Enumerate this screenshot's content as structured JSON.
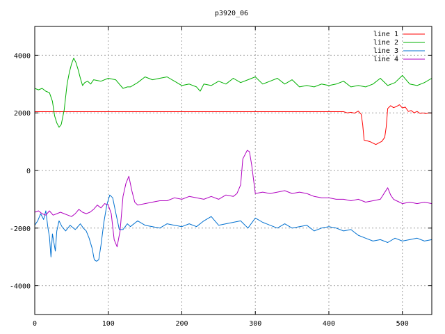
{
  "chart_data": {
    "type": "line",
    "title": "p3920_06",
    "xlabel": "",
    "ylabel": "",
    "xlim": [
      0,
      540
    ],
    "ylim": [
      -5000,
      5000
    ],
    "xticks": [
      0,
      100,
      200,
      300,
      400,
      500
    ],
    "yticks": [
      -4000,
      -2000,
      0,
      2000,
      4000
    ],
    "grid": true,
    "legend_position": "top-right",
    "series": [
      {
        "name": "line 1",
        "color": "#ff0000",
        "x": [
          0,
          420,
          425,
          430,
          435,
          440,
          444,
          446,
          448,
          452,
          456,
          460,
          464,
          468,
          472,
          476,
          478,
          480,
          484,
          488,
          492,
          496,
          500,
          504,
          508,
          512,
          516,
          520,
          524,
          528,
          532,
          536,
          540
        ],
        "y": [
          2040,
          2040,
          2000,
          2020,
          1990,
          2060,
          1950,
          1600,
          1050,
          1030,
          1000,
          950,
          900,
          960,
          1010,
          1150,
          1500,
          2150,
          2250,
          2180,
          2220,
          2280,
          2170,
          2200,
          2050,
          2080,
          2000,
          2050,
          1980,
          2000,
          1970,
          2000,
          1990
        ]
      },
      {
        "name": "line 2",
        "color": "#00b000",
        "x": [
          0,
          5,
          10,
          15,
          20,
          24,
          27,
          30,
          33,
          36,
          40,
          44,
          47,
          50,
          53,
          56,
          59,
          62,
          65,
          68,
          72,
          76,
          80,
          90,
          100,
          110,
          120,
          126,
          130,
          140,
          150,
          160,
          170,
          180,
          190,
          200,
          210,
          220,
          225,
          230,
          240,
          250,
          260,
          270,
          280,
          290,
          300,
          310,
          320,
          330,
          340,
          350,
          360,
          370,
          380,
          390,
          400,
          410,
          420,
          430,
          440,
          450,
          460,
          470,
          480,
          490,
          500,
          510,
          520,
          530,
          540
        ],
        "y": [
          2850,
          2800,
          2850,
          2750,
          2700,
          2400,
          1900,
          1650,
          1500,
          1600,
          2100,
          3000,
          3400,
          3700,
          3900,
          3750,
          3500,
          3200,
          2950,
          3050,
          3100,
          3000,
          3150,
          3100,
          3200,
          3150,
          2850,
          2900,
          2900,
          3050,
          3250,
          3150,
          3200,
          3250,
          3100,
          2950,
          3000,
          2900,
          2750,
          3000,
          2950,
          3100,
          3000,
          3200,
          3050,
          3150,
          3250,
          3000,
          3100,
          3200,
          3000,
          3150,
          2900,
          2950,
          2900,
          3000,
          2950,
          3000,
          3100,
          2900,
          2950,
          2900,
          3000,
          3200,
          2950,
          3050,
          3300,
          3000,
          2950,
          3050,
          3200
        ]
      },
      {
        "name": "line 3",
        "color": "#0070d0",
        "x": [
          0,
          4,
          8,
          12,
          15,
          18,
          20,
          22,
          24,
          26,
          28,
          30,
          33,
          37,
          42,
          48,
          55,
          62,
          66,
          70,
          74,
          78,
          81,
          84,
          87,
          90,
          94,
          98,
          102,
          106,
          110,
          115,
          120,
          126,
          130,
          140,
          150,
          160,
          170,
          180,
          190,
          200,
          210,
          220,
          230,
          240,
          250,
          260,
          270,
          280,
          290,
          300,
          310,
          320,
          330,
          340,
          350,
          360,
          370,
          380,
          390,
          400,
          410,
          420,
          430,
          440,
          450,
          460,
          470,
          480,
          490,
          500,
          510,
          520,
          530,
          540
        ],
        "y": [
          -1900,
          -1750,
          -1500,
          -1700,
          -1400,
          -2000,
          -2300,
          -3000,
          -2200,
          -2500,
          -2800,
          -2100,
          -1750,
          -1950,
          -2100,
          -1900,
          -2050,
          -1850,
          -2000,
          -2100,
          -2350,
          -2700,
          -3100,
          -3150,
          -3100,
          -2600,
          -1800,
          -1200,
          -850,
          -950,
          -1450,
          -2050,
          -2050,
          -1850,
          -1950,
          -1750,
          -1900,
          -1950,
          -2000,
          -1850,
          -1900,
          -1950,
          -1850,
          -1950,
          -1750,
          -1600,
          -1900,
          -1850,
          -1800,
          -1750,
          -2000,
          -1650,
          -1800,
          -1900,
          -2000,
          -1850,
          -2000,
          -1950,
          -1900,
          -2100,
          -2000,
          -1950,
          -2000,
          -2100,
          -2050,
          -2250,
          -2350,
          -2450,
          -2400,
          -2500,
          -2350,
          -2450,
          -2400,
          -2350,
          -2450,
          -2400
        ]
      },
      {
        "name": "line 4",
        "color": "#b000c0",
        "x": [
          0,
          5,
          10,
          15,
          20,
          25,
          30,
          35,
          40,
          45,
          50,
          55,
          60,
          65,
          70,
          75,
          80,
          85,
          90,
          95,
          100,
          104,
          108,
          112,
          116,
          120,
          124,
          128,
          132,
          136,
          140,
          150,
          160,
          170,
          180,
          190,
          200,
          210,
          220,
          230,
          240,
          250,
          260,
          270,
          275,
          280,
          283,
          286,
          289,
          292,
          295,
          300,
          310,
          320,
          330,
          340,
          350,
          360,
          370,
          380,
          390,
          400,
          410,
          420,
          430,
          440,
          450,
          460,
          470,
          480,
          484,
          488,
          492,
          496,
          500,
          510,
          520,
          530,
          540
        ],
        "y": [
          -1450,
          -1400,
          -1500,
          -1550,
          -1400,
          -1550,
          -1500,
          -1450,
          -1500,
          -1550,
          -1600,
          -1500,
          -1350,
          -1450,
          -1500,
          -1450,
          -1350,
          -1200,
          -1300,
          -1150,
          -1200,
          -1500,
          -2400,
          -2650,
          -2100,
          -900,
          -450,
          -200,
          -700,
          -1100,
          -1200,
          -1150,
          -1100,
          -1050,
          -1050,
          -950,
          -1000,
          -900,
          -950,
          -1000,
          -900,
          -1000,
          -850,
          -900,
          -800,
          -500,
          400,
          550,
          700,
          650,
          200,
          -800,
          -750,
          -800,
          -750,
          -700,
          -800,
          -750,
          -800,
          -900,
          -950,
          -950,
          -1000,
          -1000,
          -1050,
          -1000,
          -1100,
          -1050,
          -1000,
          -600,
          -850,
          -1000,
          -1050,
          -1100,
          -1150,
          -1100,
          -1150,
          -1100,
          -1150
        ]
      }
    ]
  }
}
